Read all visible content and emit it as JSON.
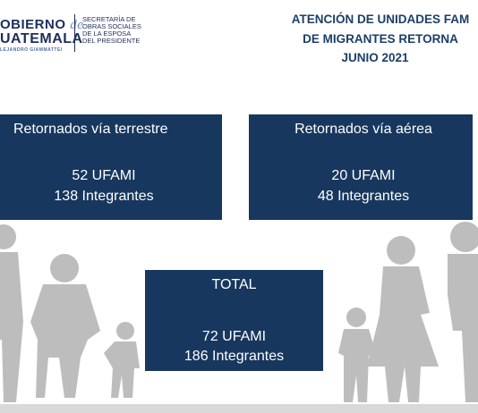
{
  "header": {
    "logo": {
      "line1": "OBIERNO",
      "line1_connector": "de",
      "line2": "UATEMALA",
      "line3": "LEJANDRO GIAMMATTEI"
    },
    "secretariat": [
      "SECRETARÍA DE",
      "OBRAS SOCIALES",
      "DE LA ESPOSA",
      "DEL PRESIDENTE"
    ],
    "title": [
      "ATENCIÓN DE UNIDADES FAM",
      "DE MIGRANTES RETORNA",
      "JUNIO 2021"
    ]
  },
  "boxes": [
    {
      "heading": "Retornados vía terrestre",
      "ufami": "52 UFAMI",
      "members": "138 Integrantes"
    },
    {
      "heading": "Retornados vía aérea",
      "ufami": "20 UFAMI",
      "members": "48 Integrantes"
    },
    {
      "heading": "TOTAL",
      "ufami": "72 UFAMI",
      "members": "186 Integrantes"
    }
  ]
}
